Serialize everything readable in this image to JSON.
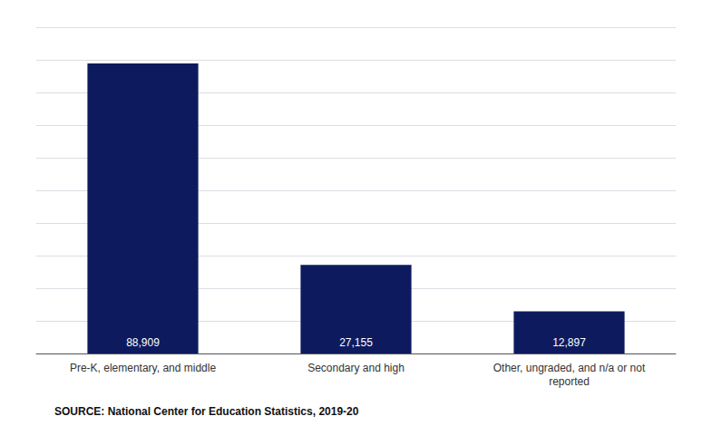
{
  "chart_data": {
    "type": "bar",
    "categories": [
      "Pre-K, elementary, and middle",
      "Secondary and high",
      "Other, ungraded, and n/a or not\nreported"
    ],
    "values": [
      88909,
      27155,
      12897
    ],
    "value_labels": [
      "88,909",
      "27,155",
      "12,897"
    ],
    "color": "#0d1b5e",
    "ylim": [
      0,
      100000
    ],
    "yticks": [
      0,
      10000,
      20000,
      30000,
      40000,
      50000,
      60000,
      70000,
      80000,
      90000,
      100000
    ],
    "grid": true,
    "data_labels": true,
    "tick_labels": "x",
    "annotations": [
      "SOURCE: National Center for Education Statistics, 2019-20"
    ]
  }
}
